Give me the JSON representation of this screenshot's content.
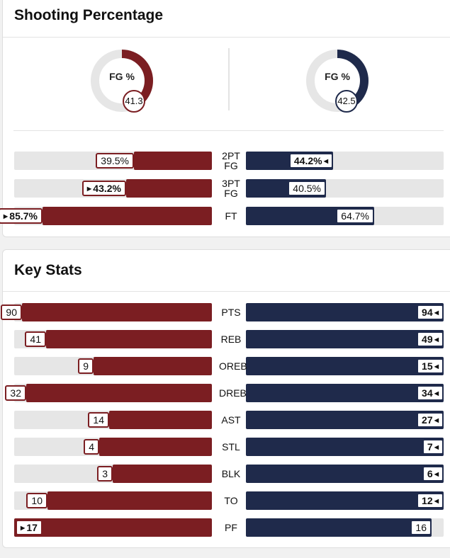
{
  "colors": {
    "away": "#7b1e22",
    "home": "#1f2a4b",
    "track": "#e6e6e6"
  },
  "shooting": {
    "title": "Shooting Percentage",
    "away_fg": {
      "label": "FG %",
      "value": "41.3",
      "pct": 41.3
    },
    "home_fg": {
      "label": "FG %",
      "value": "42.5",
      "pct": 42.5
    },
    "rows": [
      {
        "label1": "2PT",
        "label2": "FG",
        "away": "39.5%",
        "away_pct": 39.5,
        "away_leader": false,
        "home": "44.2%",
        "home_pct": 44.2,
        "home_leader": true
      },
      {
        "label1": "3PT",
        "label2": "FG",
        "away": "43.2%",
        "away_pct": 43.2,
        "away_leader": true,
        "home": "40.5%",
        "home_pct": 40.5,
        "home_leader": false
      },
      {
        "label1": "FT",
        "label2": "",
        "away": "85.7%",
        "away_pct": 85.7,
        "away_leader": true,
        "home": "64.7%",
        "home_pct": 64.7,
        "home_leader": false
      }
    ]
  },
  "key_stats": {
    "title": "Key Stats",
    "rows": [
      {
        "label": "PTS",
        "away": "90",
        "home": "94",
        "away_fraction": 0.96,
        "home_fraction": 1.0,
        "leader": "home"
      },
      {
        "label": "REB",
        "away": "41",
        "home": "49",
        "away_fraction": 0.84,
        "home_fraction": 1.0,
        "leader": "home"
      },
      {
        "label": "OREB",
        "away": "9",
        "home": "15",
        "away_fraction": 0.6,
        "home_fraction": 1.0,
        "leader": "home"
      },
      {
        "label": "DREB",
        "away": "32",
        "home": "34",
        "away_fraction": 0.94,
        "home_fraction": 1.0,
        "leader": "home"
      },
      {
        "label": "AST",
        "away": "14",
        "home": "27",
        "away_fraction": 0.52,
        "home_fraction": 1.0,
        "leader": "home"
      },
      {
        "label": "STL",
        "away": "4",
        "home": "7",
        "away_fraction": 0.57,
        "home_fraction": 1.0,
        "leader": "home"
      },
      {
        "label": "BLK",
        "away": "3",
        "home": "6",
        "away_fraction": 0.5,
        "home_fraction": 1.0,
        "leader": "home"
      },
      {
        "label": "TO",
        "away": "10",
        "home": "12",
        "away_fraction": 0.83,
        "home_fraction": 1.0,
        "leader": "home"
      },
      {
        "label": "PF",
        "away": "17",
        "home": "16",
        "away_fraction": 1.0,
        "home_fraction": 0.94,
        "leader": "away"
      }
    ]
  }
}
